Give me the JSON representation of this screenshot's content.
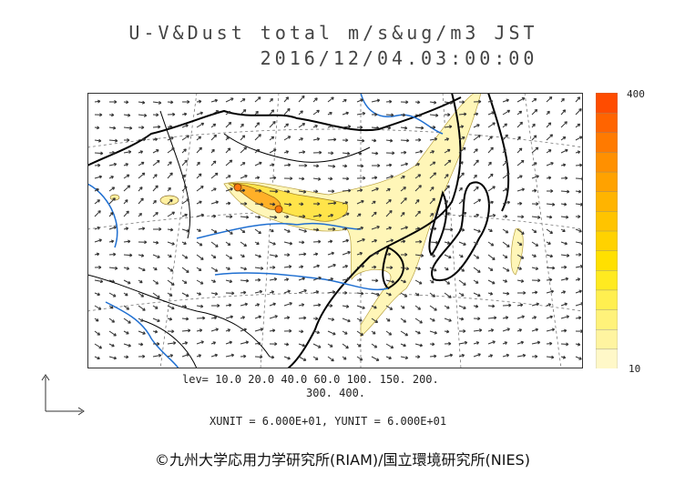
{
  "header": {
    "title_line1": "U-V&Dust total m/s&ug/m3 JST",
    "title_line2": "2016/12/04.03:00:00"
  },
  "colorbar": {
    "max_label": "400",
    "min_label": "10",
    "colors": [
      "#fff8c8",
      "#fff4a0",
      "#fff27a",
      "#ffef50",
      "#ffea20",
      "#ffe000",
      "#ffd200",
      "#ffc400",
      "#ffb400",
      "#ffa200",
      "#ff9000",
      "#ff7a00",
      "#ff6400",
      "#ff4c00"
    ]
  },
  "legend": {
    "levels_line1": "lev= 10.0 20.0 40.0 60.0 100. 150. 200.",
    "levels_line2": "300. 400.",
    "units": "XUNIT = 6.000E+01, YUNIT = 6.000E+01"
  },
  "footer": {
    "credit": "©九州大学応用力学研究所(RIAM)/国立環境研究所(NIES)"
  },
  "map_colors": {
    "coast": "#000000",
    "rivers": "#1f6fd1",
    "dust_light": "#fff6b8",
    "dust_mid": "#ffe44a",
    "dust_high": "#ff8c1a"
  }
}
